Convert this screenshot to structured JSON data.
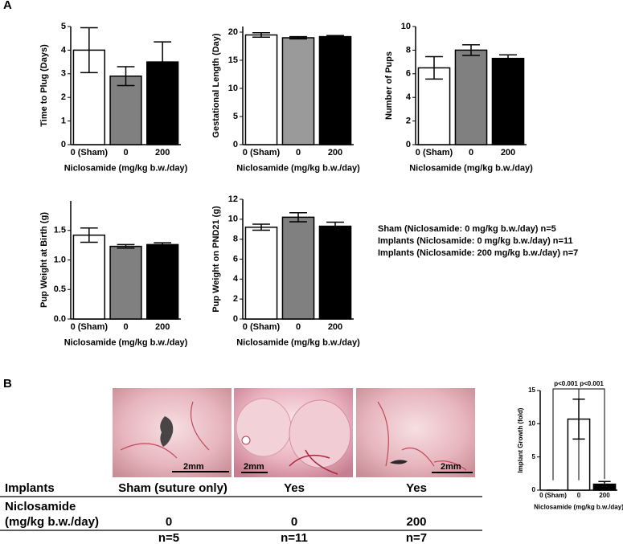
{
  "panel_labels": [
    "A",
    "B"
  ],
  "chart_data": [
    {
      "type": "bar",
      "ylabel": "Time to Plug (Days)",
      "xlabel": "Niclosamide (mg/kg b.w./day)",
      "categories": [
        "0 (Sham)",
        "0",
        "200"
      ],
      "values": [
        4.0,
        2.9,
        3.5
      ],
      "errors": [
        0.95,
        0.4,
        0.85
      ],
      "colors": [
        "#ffffff",
        "#808080",
        "#000000"
      ],
      "ylim": [
        0,
        5
      ],
      "yticks": [
        0,
        1,
        2,
        3,
        4,
        5
      ]
    },
    {
      "type": "bar",
      "ylabel": "Gestational Length (Day)",
      "xlabel": "Niclosamide (mg/kg b.w./day)",
      "categories": [
        "0 (Sham)",
        "0",
        "200"
      ],
      "values": [
        19.5,
        19.0,
        19.2
      ],
      "errors": [
        0.4,
        0.2,
        0.2
      ],
      "colors": [
        "#ffffff",
        "#9a9a9a",
        "#000000"
      ],
      "ylim": [
        0,
        21
      ],
      "yticks": [
        0,
        5,
        10,
        15,
        20
      ]
    },
    {
      "type": "bar",
      "ylabel": "Number of Pups",
      "xlabel": "Niclosamide (mg/kg b.w./day)",
      "categories": [
        "0 (Sham)",
        "0",
        "200"
      ],
      "values": [
        6.5,
        8.0,
        7.3
      ],
      "errors": [
        0.95,
        0.45,
        0.3
      ],
      "colors": [
        "#ffffff",
        "#808080",
        "#000000"
      ],
      "ylim": [
        0,
        10
      ],
      "yticks": [
        0,
        2,
        4,
        6,
        8,
        10
      ]
    },
    {
      "type": "bar",
      "ylabel": "Pup Weight at Birth (g)",
      "xlabel": "Niclosamide (mg/kg b.w./day)",
      "categories": [
        "0 (Sham)",
        "0",
        "200"
      ],
      "values": [
        1.42,
        1.23,
        1.26
      ],
      "errors": [
        0.12,
        0.03,
        0.03
      ],
      "colors": [
        "#ffffff",
        "#808080",
        "#000000"
      ],
      "ylim": [
        0,
        2
      ],
      "yticks": [
        {
          "value": 0,
          "label": "0.0"
        },
        {
          "value": 0.5,
          "label": "0.5"
        },
        {
          "value": 1,
          "label": "1.0"
        },
        {
          "value": 1.5,
          "label": "1.5"
        }
      ]
    },
    {
      "type": "bar",
      "ylabel": "Pup Weight on PND21 (g)",
      "xlabel": "Niclosamide (mg/kg b.w./day)",
      "categories": [
        "0 (Sham)",
        "0",
        "200"
      ],
      "values": [
        9.2,
        10.2,
        9.3
      ],
      "errors": [
        0.3,
        0.45,
        0.4
      ],
      "colors": [
        "#ffffff",
        "#808080",
        "#000000"
      ],
      "ylim": [
        0,
        12
      ],
      "yticks": [
        0,
        2,
        4,
        6,
        8,
        10,
        12
      ]
    },
    {
      "type": "bar",
      "ylabel": "Implant Growth (fold)",
      "xlabel": "Niclosamide (mg/kg b.w./day)",
      "categories": [
        "0 (Sham)",
        "0",
        "200"
      ],
      "values": [
        0,
        10.7,
        0.9
      ],
      "errors": [
        0,
        3.0,
        0.4
      ],
      "colors": [
        "#ffffff",
        "#ffffff",
        "#000000"
      ],
      "ylim": [
        0,
        15
      ],
      "yticks": [
        0,
        5,
        10,
        15
      ],
      "annotations": [
        "p<0.001",
        "p<0.001"
      ]
    }
  ],
  "legend": [
    "Sham (Niclosamide: 0 mg/kg b.w./day) n=5",
    "Implants (Niclosamide: 0 mg/kg b.w./day) n=11",
    "Implants (Niclosamide: 200 mg/kg b.w./day) n=7"
  ],
  "photos": {
    "scale_labels": [
      "2mm",
      "2mm",
      "2mm"
    ]
  },
  "table": {
    "header": [
      "Implants",
      "Sham (suture only)",
      "Yes",
      "Yes"
    ],
    "dose_label": [
      "Niclosamide",
      "(mg/kg b.w./day)"
    ],
    "dose": [
      "0",
      "0",
      "200"
    ],
    "n": [
      "n=5",
      "n=11",
      "n=7"
    ]
  }
}
